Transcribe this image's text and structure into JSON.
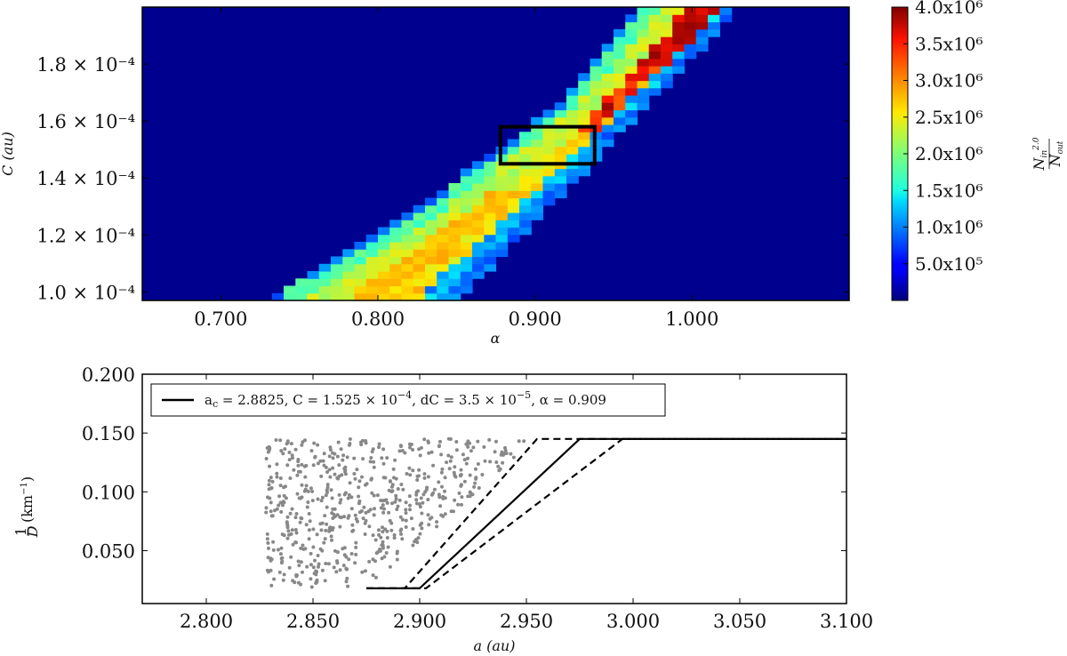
{
  "chart_data": [
    {
      "type": "heatmap",
      "title": "",
      "xlabel": "α",
      "ylabel": "C (au)",
      "xlim": [
        0.65,
        1.1
      ],
      "ylim": [
        9.7e-05,
        0.0002
      ],
      "x_ticks": [
        {
          "value": 0.7,
          "label": "0.700"
        },
        {
          "value": 0.8,
          "label": "0.800"
        },
        {
          "value": 0.9,
          "label": "0.900"
        },
        {
          "value": 1.0,
          "label": "1.000"
        }
      ],
      "y_ticks": [
        {
          "value": 0.0001,
          "label": "1.0 × 10⁻⁴"
        },
        {
          "value": 0.00012,
          "label": "1.2 × 10⁻⁴"
        },
        {
          "value": 0.00014,
          "label": "1.4 × 10⁻⁴"
        },
        {
          "value": 0.00016,
          "label": "1.6 × 10⁻⁴"
        },
        {
          "value": 0.00018,
          "label": "1.8 × 10⁻⁴"
        }
      ],
      "grid": {
        "alpha_start": 0.65,
        "alpha_step": 0.0075,
        "alpha_count": 60,
        "c_start": 9.7e-05,
        "c_step": 2.575e-06,
        "c_count": 40
      },
      "band": [
        {
          "c": 0.0001,
          "alpha_lo": 0.738,
          "alpha_hi": 0.852
        },
        {
          "c": 0.00011,
          "alpha_lo": 0.77,
          "alpha_hi": 0.872
        },
        {
          "c": 0.00012,
          "alpha_lo": 0.802,
          "alpha_hi": 0.888
        },
        {
          "c": 0.00013,
          "alpha_lo": 0.83,
          "alpha_hi": 0.905
        },
        {
          "c": 0.00014,
          "alpha_lo": 0.855,
          "alpha_hi": 0.925
        },
        {
          "c": 0.00015,
          "alpha_lo": 0.88,
          "alpha_hi": 0.94
        },
        {
          "c": 0.00016,
          "alpha_lo": 0.905,
          "alpha_hi": 0.958
        },
        {
          "c": 0.00017,
          "alpha_lo": 0.925,
          "alpha_hi": 0.975
        },
        {
          "c": 0.00018,
          "alpha_lo": 0.94,
          "alpha_hi": 0.993
        },
        {
          "c": 0.00019,
          "alpha_lo": 0.955,
          "alpha_hi": 1.01
        },
        {
          "c": 0.0002,
          "alpha_lo": 0.968,
          "alpha_hi": 1.025
        }
      ],
      "highlight_box": {
        "alpha": [
          0.878,
          0.938
        ],
        "c": [
          0.000145,
          0.000158
        ]
      },
      "colorbar": {
        "label": "N_in^2.0 / N_out",
        "label_numerator": "N",
        "label_numerator_sub": "in",
        "label_numerator_sup": "2.0",
        "label_denominator": "N",
        "label_denominator_sub": "out",
        "min": 0,
        "max": 4000000,
        "ticks": [
          {
            "value": 4000000,
            "label": "4.0x10⁶"
          },
          {
            "value": 3500000,
            "label": "3.5x10⁶"
          },
          {
            "value": 3000000,
            "label": "3.0x10⁶"
          },
          {
            "value": 2500000,
            "label": "2.5x10⁶"
          },
          {
            "value": 2000000,
            "label": "2.0x10⁶"
          },
          {
            "value": 1500000,
            "label": "1.5x10⁶"
          },
          {
            "value": 1000000,
            "label": "1.0x10⁶"
          },
          {
            "value": 500000,
            "label": "5.0x10⁵"
          }
        ]
      }
    },
    {
      "type": "scatter",
      "title": "",
      "xlabel": "a (au)",
      "ylabel": "1/D (km⁻¹)",
      "ylabel_frac_top": "1",
      "ylabel_frac_bottom": "D",
      "ylabel_unit": "(km",
      "ylabel_unit_sup": "−1",
      "ylabel_unit_close": ")",
      "xlim": [
        2.77,
        3.1
      ],
      "ylim": [
        0.005,
        0.2
      ],
      "x_ticks": [
        {
          "value": 2.8,
          "label": "2.800"
        },
        {
          "value": 2.85,
          "label": "2.850"
        },
        {
          "value": 2.9,
          "label": "2.900"
        },
        {
          "value": 2.95,
          "label": "2.950"
        },
        {
          "value": 3.0,
          "label": "3.000"
        },
        {
          "value": 3.05,
          "label": "3.050"
        },
        {
          "value": 3.1,
          "label": "3.100"
        }
      ],
      "y_ticks": [
        {
          "value": 0.05,
          "label": "0.050"
        },
        {
          "value": 0.1,
          "label": "0.100"
        },
        {
          "value": 0.15,
          "label": "0.150"
        },
        {
          "value": 0.2,
          "label": "0.200"
        }
      ],
      "points_region": {
        "a_min": 2.828,
        "a_max": 2.95,
        "inv_d_min": 0.018,
        "inv_d_max": 0.145,
        "count": 600,
        "color": "#888888"
      },
      "lines": [
        {
          "style": "solid",
          "a": [
            2.875,
            2.9,
            2.975,
            3.1
          ],
          "inv_d": [
            0.018,
            0.018,
            0.145,
            0.145
          ]
        },
        {
          "style": "dashed",
          "a": [
            2.875,
            2.893,
            2.955,
            3.1
          ],
          "inv_d": [
            0.018,
            0.018,
            0.145,
            0.145
          ]
        },
        {
          "style": "dashed",
          "a": [
            2.875,
            2.903,
            2.995,
            3.1
          ],
          "inv_d": [
            0.018,
            0.018,
            0.145,
            0.145
          ]
        }
      ],
      "legend": {
        "placement": "top-left",
        "text": "a_c = 2.8825, C = 1.525 × 10⁻⁴, dC = 3.5 × 10⁻⁵, α = 0.909",
        "part_ac": "a",
        "part_ac_sub": "c",
        "part_ac_val": " = 2.8825,  C = 1.525 × 10",
        "part_c_exp": "−4",
        "part_dc": ",  dC = 3.5 × 10",
        "part_dc_exp": "−5",
        "part_alpha": ",  α  =  0.909"
      }
    }
  ]
}
